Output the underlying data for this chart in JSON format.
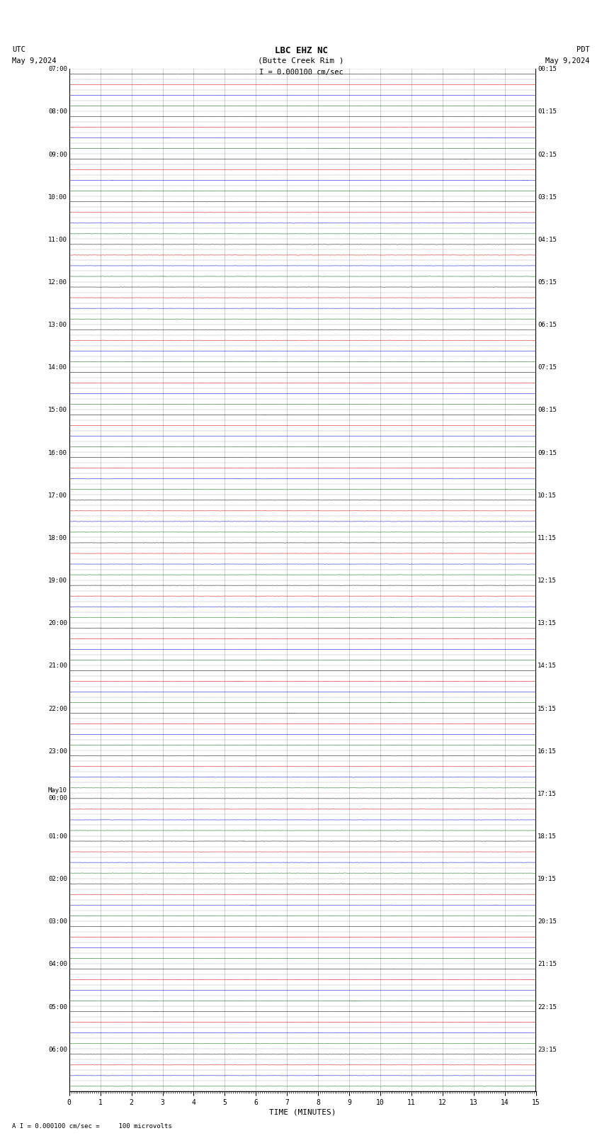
{
  "title_line1": "LBC EHZ NC",
  "title_line2": "(Butte Creek Rim )",
  "scale_text": "I = 0.000100 cm/sec",
  "bottom_label": "A I = 0.000100 cm/sec =     100 microvolts",
  "xlabel": "TIME (MINUTES)",
  "utc_times": [
    "07:00",
    "",
    "",
    "",
    "08:00",
    "",
    "",
    "",
    "09:00",
    "",
    "",
    "",
    "10:00",
    "",
    "",
    "",
    "11:00",
    "",
    "",
    "",
    "12:00",
    "",
    "",
    "",
    "13:00",
    "",
    "",
    "",
    "14:00",
    "",
    "",
    "",
    "15:00",
    "",
    "",
    "",
    "16:00",
    "",
    "",
    "",
    "17:00",
    "",
    "",
    "",
    "18:00",
    "",
    "",
    "",
    "19:00",
    "",
    "",
    "",
    "20:00",
    "",
    "",
    "",
    "21:00",
    "",
    "",
    "",
    "22:00",
    "",
    "",
    "",
    "23:00",
    "",
    "",
    "",
    "May10\n00:00",
    "",
    "",
    "",
    "01:00",
    "",
    "",
    "",
    "02:00",
    "",
    "",
    "",
    "03:00",
    "",
    "",
    "",
    "04:00",
    "",
    "",
    "",
    "05:00",
    "",
    "",
    "",
    "06:00",
    "",
    "",
    ""
  ],
  "pdt_times": [
    "00:15",
    "",
    "",
    "",
    "01:15",
    "",
    "",
    "",
    "02:15",
    "",
    "",
    "",
    "03:15",
    "",
    "",
    "",
    "04:15",
    "",
    "",
    "",
    "05:15",
    "",
    "",
    "",
    "06:15",
    "",
    "",
    "",
    "07:15",
    "",
    "",
    "",
    "08:15",
    "",
    "",
    "",
    "09:15",
    "",
    "",
    "",
    "10:15",
    "",
    "",
    "",
    "11:15",
    "",
    "",
    "",
    "12:15",
    "",
    "",
    "",
    "13:15",
    "",
    "",
    "",
    "14:15",
    "",
    "",
    "",
    "15:15",
    "",
    "",
    "",
    "16:15",
    "",
    "",
    "",
    "17:15",
    "",
    "",
    "",
    "18:15",
    "",
    "",
    "",
    "19:15",
    "",
    "",
    "",
    "20:15",
    "",
    "",
    "",
    "21:15",
    "",
    "",
    "",
    "22:15",
    "",
    "",
    "",
    "23:15",
    "",
    "",
    ""
  ],
  "n_rows": 96,
  "xmin": 0,
  "xmax": 15,
  "background_color": "#ffffff",
  "line_color_normal": "#000000",
  "line_color_red": "#cc0000",
  "line_color_blue": "#0000cc",
  "line_color_green": "#006600",
  "grid_color": "#aaaaaa",
  "font_family": "monospace",
  "row_color_pattern": [
    "black",
    "red",
    "blue",
    "black",
    "black",
    "red",
    "blue",
    "green",
    "black",
    "red",
    "blue",
    "green",
    "black",
    "red",
    "blue",
    "green",
    "black",
    "red",
    "blue",
    "green",
    "black",
    "red",
    "blue",
    "green",
    "black",
    "red",
    "blue",
    "green",
    "black",
    "red",
    "blue",
    "green",
    "black",
    "red",
    "blue",
    "green",
    "black",
    "red",
    "blue",
    "green",
    "black",
    "red",
    "blue",
    "green",
    "black",
    "red",
    "blue",
    "green",
    "black",
    "red",
    "blue",
    "green",
    "black",
    "red",
    "blue",
    "green",
    "black",
    "red",
    "blue",
    "green",
    "black",
    "red",
    "blue",
    "green",
    "black",
    "red",
    "blue",
    "green",
    "black",
    "red",
    "blue",
    "green",
    "black",
    "red",
    "blue",
    "green",
    "black",
    "red",
    "blue",
    "green",
    "black",
    "red",
    "blue",
    "green",
    "black",
    "red",
    "blue",
    "green",
    "black",
    "red",
    "blue",
    "green",
    "black",
    "red",
    "blue",
    "green"
  ]
}
